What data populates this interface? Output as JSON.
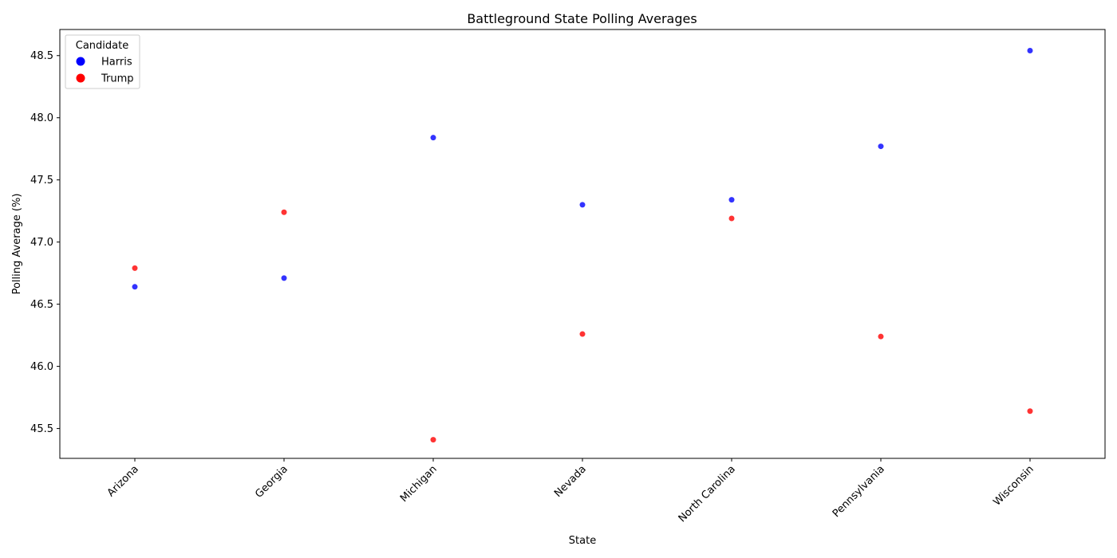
{
  "chart_data": {
    "type": "scatter",
    "title": "Battleground State Polling Averages",
    "xlabel": "State",
    "ylabel": "Polling Average (%)",
    "categories": [
      "Arizona",
      "Georgia",
      "Michigan",
      "Nevada",
      "North Carolina",
      "Pennsylvania",
      "Wisconsin"
    ],
    "ylim": [
      45.26,
      48.71
    ],
    "yticks": [
      "45.5",
      "46.0",
      "46.5",
      "47.0",
      "47.5",
      "48.0",
      "48.5"
    ],
    "grid": false,
    "legend": {
      "title": "Candidate",
      "placement": "upper-left"
    },
    "series": [
      {
        "name": "Harris",
        "color": "#0000ff",
        "values": [
          46.64,
          46.71,
          47.84,
          47.3,
          47.34,
          47.77,
          48.54
        ]
      },
      {
        "name": "Trump",
        "color": "#ff0000",
        "values": [
          46.79,
          47.24,
          45.41,
          46.26,
          47.19,
          46.24,
          45.64
        ]
      }
    ]
  }
}
